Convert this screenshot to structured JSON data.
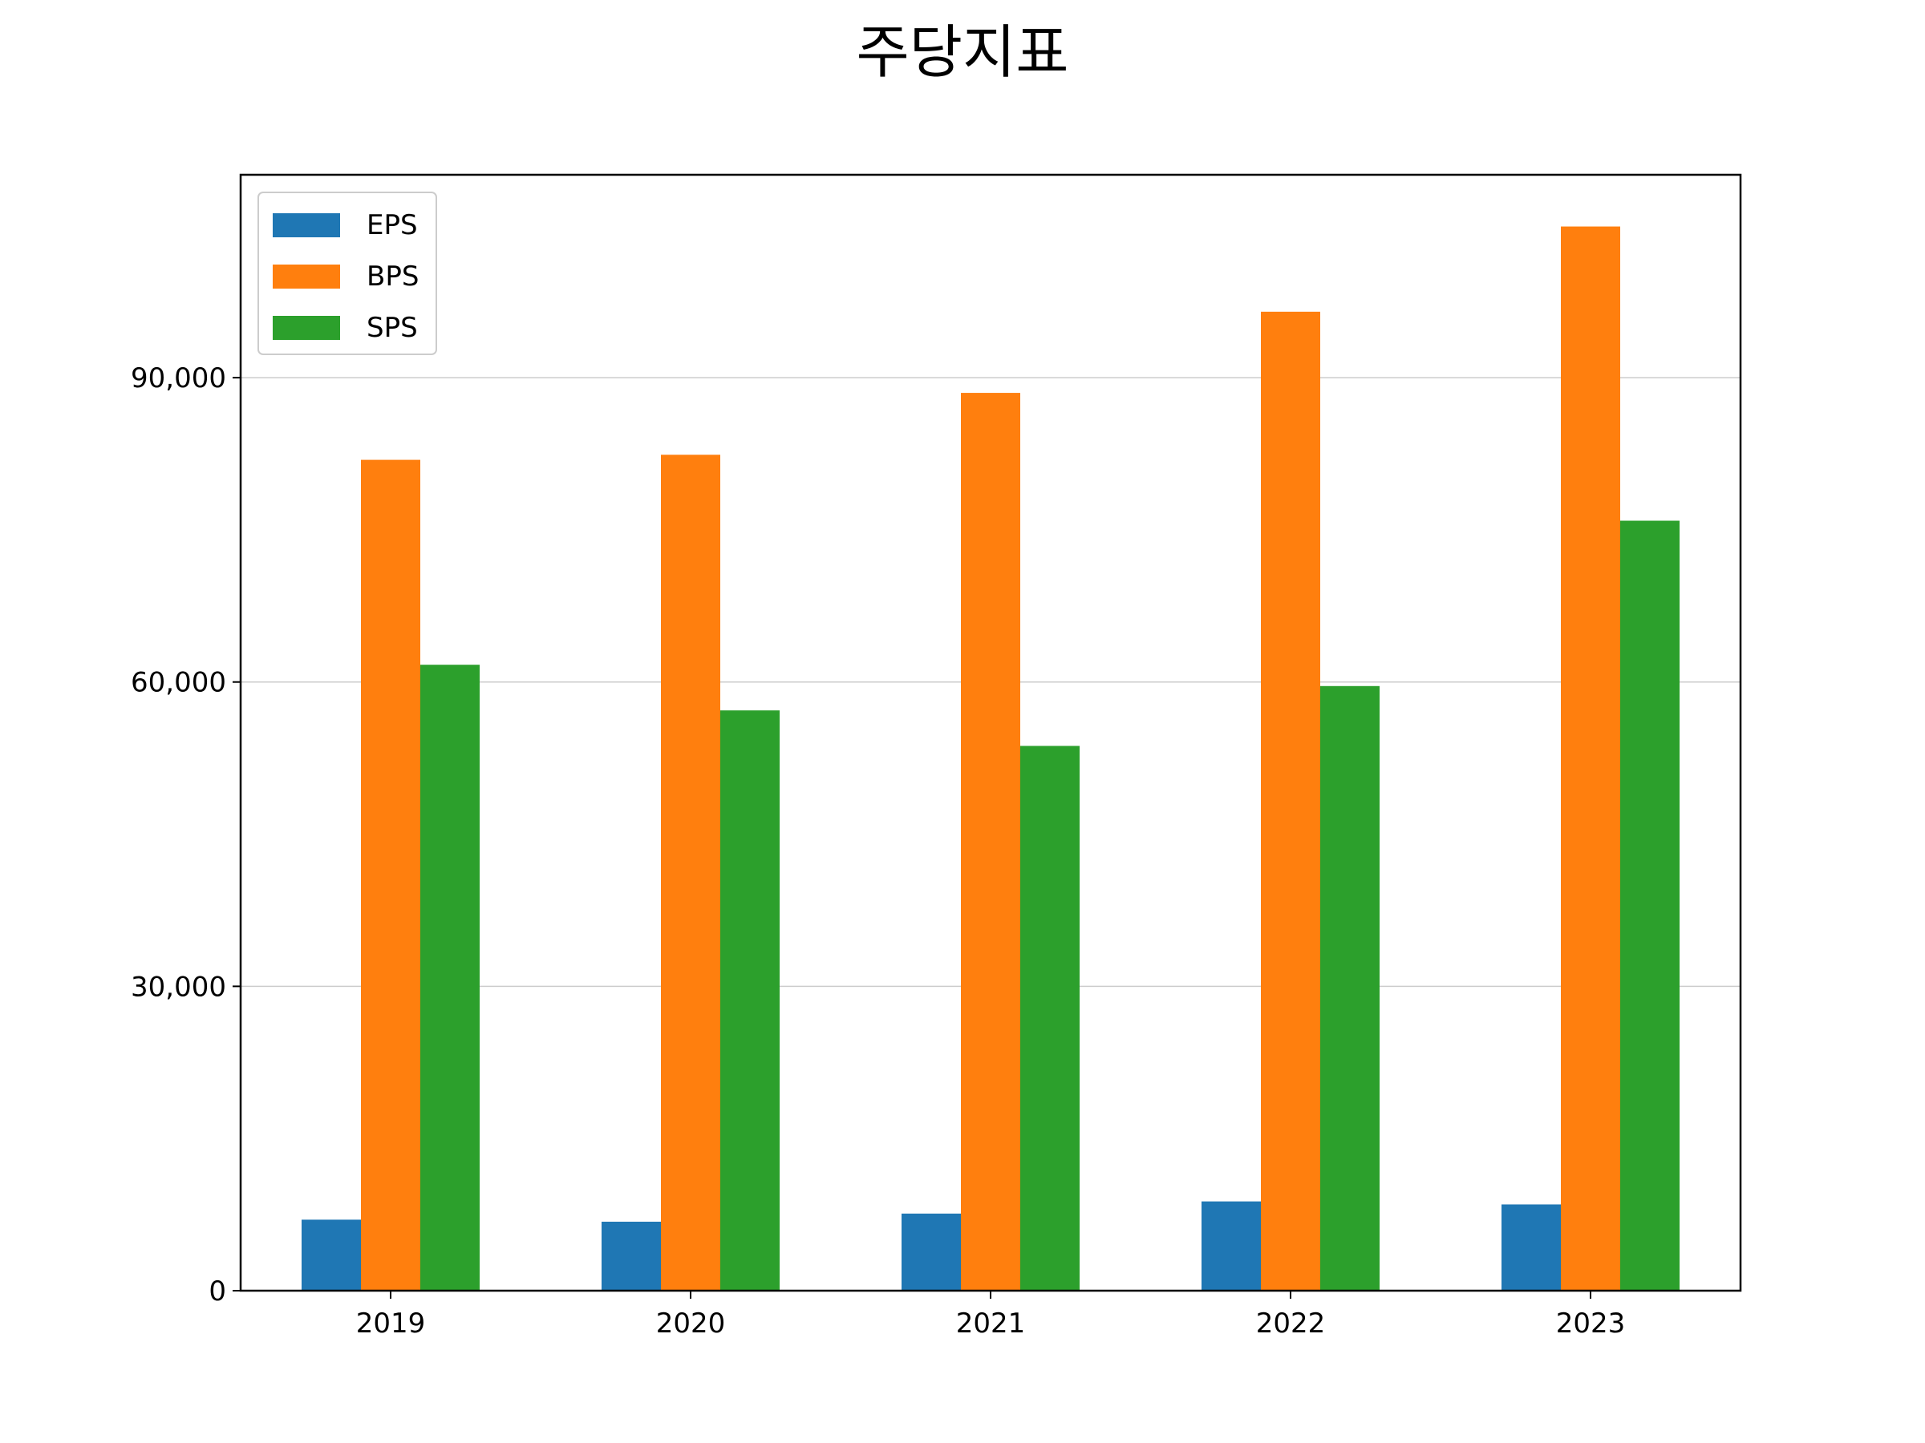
{
  "chart_data": {
    "type": "bar",
    "title": "주당지표",
    "xlabel": "",
    "ylabel": "",
    "categories": [
      "2019",
      "2020",
      "2021",
      "2022",
      "2023"
    ],
    "series": [
      {
        "name": "EPS",
        "color": "#1f77b4",
        "values": [
          7000,
          6800,
          7600,
          8800,
          8500
        ]
      },
      {
        "name": "BPS",
        "color": "#ff7f0e",
        "values": [
          81900,
          82400,
          88500,
          96500,
          104900
        ]
      },
      {
        "name": "SPS",
        "color": "#2ca02c",
        "values": [
          61700,
          57200,
          53700,
          59600,
          75900
        ]
      }
    ],
    "ylim": [
      0,
      110000
    ],
    "yticks": [
      0,
      30000,
      60000,
      90000
    ],
    "ytick_labels": [
      "0",
      "30,000",
      "60,000",
      "90,000"
    ],
    "grid": "horizontal",
    "legend_position": "top-left"
  }
}
